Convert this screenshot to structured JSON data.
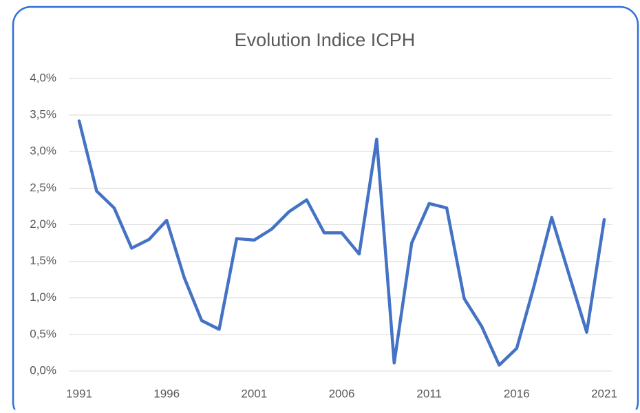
{
  "chart_data": {
    "type": "line",
    "title": "Evolution Indice ICPH",
    "x": [
      1991,
      1992,
      1993,
      1994,
      1995,
      1996,
      1997,
      1998,
      1999,
      2000,
      2001,
      2002,
      2003,
      2004,
      2005,
      2006,
      2007,
      2008,
      2009,
      2010,
      2011,
      2012,
      2013,
      2014,
      2015,
      2016,
      2017,
      2018,
      2019,
      2020,
      2021
    ],
    "series": [
      {
        "name": "ICPH",
        "color": "#4472c4",
        "values": [
          3.42,
          2.46,
          2.23,
          1.68,
          1.8,
          2.06,
          1.28,
          0.69,
          0.57,
          1.81,
          1.79,
          1.94,
          2.18,
          2.34,
          1.89,
          1.89,
          1.6,
          3.17,
          0.11,
          1.75,
          2.29,
          2.23,
          0.99,
          0.61,
          0.08,
          0.31,
          1.17,
          2.1,
          1.31,
          0.53,
          2.07
        ]
      }
    ],
    "xlim": [
      1991,
      2021
    ],
    "xticks": [
      1991,
      1996,
      2001,
      2006,
      2011,
      2016,
      2021
    ],
    "ylim": [
      0,
      4
    ],
    "yticks": [
      {
        "value": 0,
        "label": "0,0%"
      },
      {
        "value": 0.5,
        "label": "0,5%"
      },
      {
        "value": 1,
        "label": "1,0%"
      },
      {
        "value": 1.5,
        "label": "1,5%"
      },
      {
        "value": 2,
        "label": "2,0%"
      },
      {
        "value": 2.5,
        "label": "2,5%"
      },
      {
        "value": 3,
        "label": "3,0%"
      },
      {
        "value": 3.5,
        "label": "3,5%"
      },
      {
        "value": 4,
        "label": "4,0%"
      }
    ],
    "grid": true
  }
}
